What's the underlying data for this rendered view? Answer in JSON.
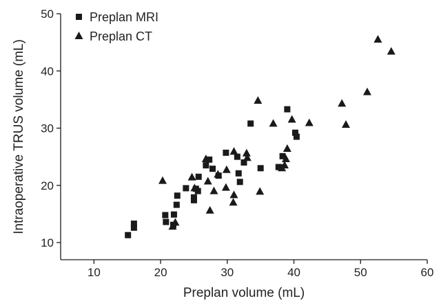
{
  "chart_data": {
    "type": "scatter",
    "xlabel": "Preplan volume (mL)",
    "ylabel": "Intraoperative TRUS volume (mL)",
    "xlim": [
      5,
      60
    ],
    "ylim": [
      7,
      50
    ],
    "xticks": [
      "10",
      "20",
      "30",
      "40",
      "50",
      "60"
    ],
    "yticks": [
      "10",
      "20",
      "30",
      "40",
      "50"
    ],
    "grid": false,
    "legend_position": "top-left",
    "series": [
      {
        "name": "Preplan MRI",
        "marker": "square",
        "color": "#1a1a1a",
        "points": [
          [
            15.1,
            11.3
          ],
          [
            16.0,
            12.6
          ],
          [
            16.0,
            13.3
          ],
          [
            20.7,
            14.8
          ],
          [
            20.8,
            13.6
          ],
          [
            21.9,
            13.1
          ],
          [
            22.0,
            14.9
          ],
          [
            22.4,
            16.6
          ],
          [
            22.5,
            18.2
          ],
          [
            23.8,
            19.5
          ],
          [
            25.0,
            17.4
          ],
          [
            25.0,
            17.9
          ],
          [
            25.3,
            19.4
          ],
          [
            25.6,
            19.0
          ],
          [
            25.7,
            21.5
          ],
          [
            26.8,
            23.5
          ],
          [
            27.3,
            24.5
          ],
          [
            27.8,
            22.9
          ],
          [
            28.7,
            21.7
          ],
          [
            29.8,
            25.7
          ],
          [
            31.5,
            25.0
          ],
          [
            31.7,
            22.1
          ],
          [
            31.9,
            20.6
          ],
          [
            32.5,
            24.0
          ],
          [
            33.5,
            30.8
          ],
          [
            35.0,
            23.0
          ],
          [
            37.7,
            23.2
          ],
          [
            38.3,
            25.1
          ],
          [
            39.0,
            33.3
          ],
          [
            40.2,
            29.2
          ],
          [
            40.4,
            28.5
          ]
        ]
      },
      {
        "name": "Preplan CT",
        "marker": "triangle",
        "color": "#1a1a1a",
        "points": [
          [
            20.3,
            20.8
          ],
          [
            21.8,
            12.8
          ],
          [
            22.2,
            13.5
          ],
          [
            24.7,
            21.4
          ],
          [
            25.1,
            19.5
          ],
          [
            26.8,
            24.6
          ],
          [
            27.1,
            20.7
          ],
          [
            27.4,
            15.6
          ],
          [
            28.0,
            19.0
          ],
          [
            28.6,
            21.9
          ],
          [
            29.8,
            19.6
          ],
          [
            29.9,
            22.7
          ],
          [
            30.9,
            17.0
          ],
          [
            31.0,
            18.3
          ],
          [
            31.0,
            25.9
          ],
          [
            32.9,
            25.6
          ],
          [
            33.0,
            24.8
          ],
          [
            34.6,
            34.8
          ],
          [
            34.9,
            18.9
          ],
          [
            36.9,
            30.8
          ],
          [
            38.2,
            23.0
          ],
          [
            38.6,
            23.5
          ],
          [
            38.8,
            24.6
          ],
          [
            39.0,
            26.4
          ],
          [
            39.7,
            31.5
          ],
          [
            42.3,
            30.9
          ],
          [
            47.2,
            34.3
          ],
          [
            47.8,
            30.6
          ],
          [
            51.0,
            36.3
          ],
          [
            52.6,
            45.5
          ],
          [
            54.6,
            43.4
          ]
        ]
      }
    ]
  }
}
